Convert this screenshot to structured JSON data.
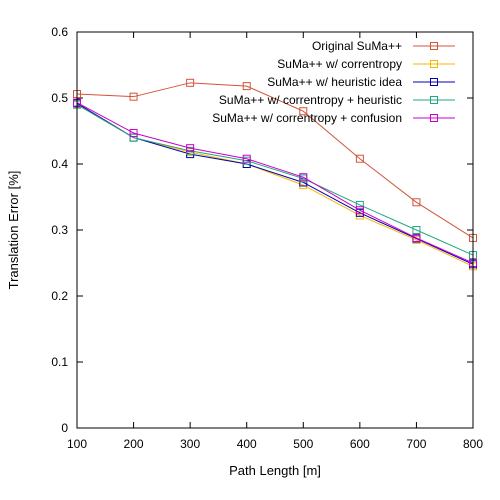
{
  "chart_data": {
    "type": "line",
    "title": "",
    "xlabel": "Path Length [m]",
    "ylabel": "Translation Error [%]",
    "x": [
      100,
      200,
      300,
      400,
      500,
      600,
      700,
      800
    ],
    "xlim": [
      100,
      800
    ],
    "ylim": [
      0,
      0.6
    ],
    "x_ticks": [
      "100",
      "200",
      "300",
      "400",
      "500",
      "600",
      "700",
      "800"
    ],
    "y_ticks": [
      "0",
      "0.1",
      "0.2",
      "0.3",
      "0.4",
      "0.5",
      "0.6"
    ],
    "x_tick_values": [
      100,
      200,
      300,
      400,
      500,
      600,
      700,
      800
    ],
    "y_tick_values": [
      0,
      0.1,
      0.2,
      0.3,
      0.4,
      0.5,
      0.6
    ],
    "grid": false,
    "legend_position": "top-right",
    "marker": "square",
    "series": [
      {
        "name": "Original SuMa++",
        "color": "#d2543a",
        "values": [
          0.506,
          0.502,
          0.523,
          0.518,
          0.48,
          0.408,
          0.342,
          0.288
        ]
      },
      {
        "name": "SuMa++ w/ correntropy",
        "color": "#f5b800",
        "values": [
          0.49,
          0.44,
          0.418,
          0.4,
          0.368,
          0.322,
          0.285,
          0.245
        ]
      },
      {
        "name": "SuMa++ w/ heuristic idea",
        "color": "#0000b4",
        "values": [
          0.492,
          0.44,
          0.415,
          0.4,
          0.372,
          0.326,
          0.287,
          0.248
        ]
      },
      {
        "name": "SuMa++ w/ correntropy + heuristic",
        "color": "#22a882",
        "values": [
          0.49,
          0.44,
          0.42,
          0.405,
          0.378,
          0.338,
          0.3,
          0.262
        ]
      },
      {
        "name": "SuMa++ w/ correntropy + confusion",
        "color": "#cc00cc",
        "values": [
          0.493,
          0.447,
          0.424,
          0.408,
          0.38,
          0.33,
          0.288,
          0.25
        ]
      }
    ]
  }
}
